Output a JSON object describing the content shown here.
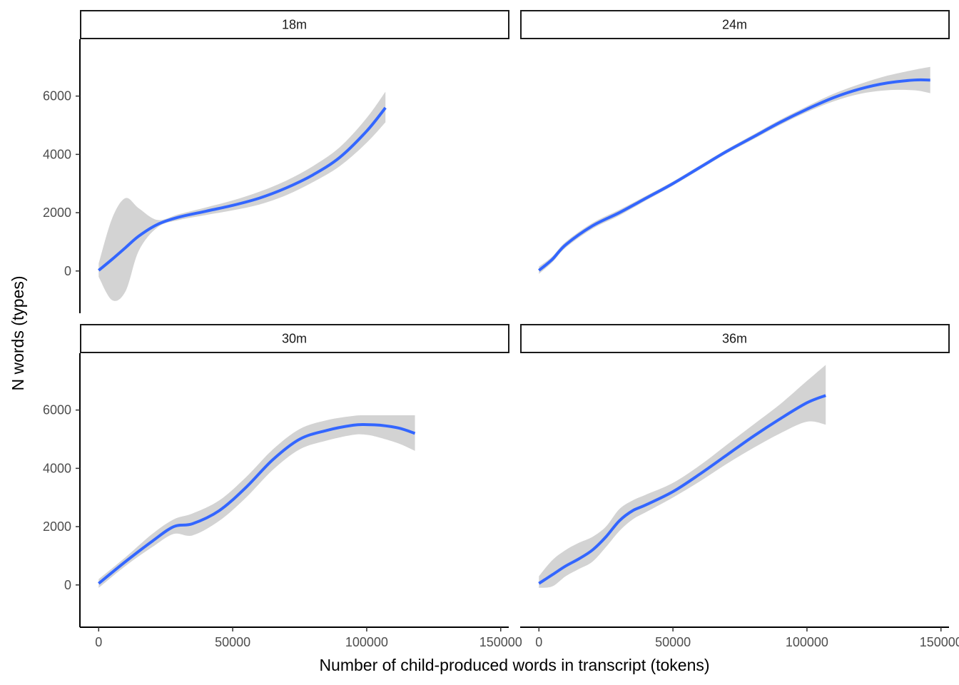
{
  "chart_data": {
    "type": "line",
    "xlabel": "Number of child-produced words in transcript (tokens)",
    "ylabel": "N words (types)",
    "xlim": [
      -7000,
      153000
    ],
    "ylim": [
      -1450,
      7950
    ],
    "x_ticks": [
      0,
      50000,
      100000,
      150000
    ],
    "x_tick_labels": [
      "0",
      "50000",
      "100000",
      "150000"
    ],
    "y_ticks": [
      0,
      2000,
      4000,
      6000
    ],
    "y_tick_labels": [
      "0",
      "2000",
      "4000",
      "6000"
    ],
    "grid": false,
    "legend": "none",
    "line_color": "#3366FF",
    "ribbon_color": "#d3d3d3",
    "panels": [
      {
        "label": "18m",
        "x": [
          0,
          5000,
          10000,
          15000,
          22000,
          30000,
          40000,
          50000,
          60000,
          70000,
          80000,
          90000,
          100000,
          107000
        ],
        "y": [
          20,
          400,
          800,
          1200,
          1600,
          1850,
          2050,
          2250,
          2500,
          2850,
          3300,
          3900,
          4800,
          5600
        ],
        "lower": [
          -200,
          -1000,
          -700,
          700,
          1500,
          1750,
          1920,
          2080,
          2280,
          2600,
          3050,
          3600,
          4400,
          5100
        ],
        "upper": [
          250,
          1800,
          2500,
          2150,
          1750,
          1950,
          2180,
          2420,
          2720,
          3100,
          3600,
          4250,
          5250,
          6150
        ]
      },
      {
        "label": "24m",
        "x": [
          0,
          5000,
          10000,
          20000,
          30000,
          40000,
          50000,
          60000,
          70000,
          80000,
          90000,
          100000,
          110000,
          120000,
          130000,
          140000,
          146000
        ],
        "y": [
          20,
          400,
          900,
          1550,
          2000,
          2500,
          3000,
          3550,
          4100,
          4600,
          5100,
          5550,
          5950,
          6250,
          6450,
          6550,
          6550
        ],
        "lower": [
          -100,
          300,
          800,
          1450,
          1900,
          2420,
          2930,
          3480,
          4030,
          4520,
          5010,
          5450,
          5820,
          6080,
          6200,
          6200,
          6100
        ],
        "upper": [
          150,
          500,
          1000,
          1650,
          2100,
          2580,
          3070,
          3620,
          4170,
          4680,
          5190,
          5650,
          6080,
          6420,
          6700,
          6900,
          7000
        ]
      },
      {
        "label": "30m",
        "x": [
          0,
          10000,
          20000,
          28000,
          35000,
          45000,
          55000,
          65000,
          75000,
          85000,
          95000,
          100000,
          105000,
          112000,
          118000
        ],
        "y": [
          50,
          800,
          1500,
          2000,
          2100,
          2550,
          3350,
          4300,
          5000,
          5300,
          5480,
          5500,
          5480,
          5380,
          5200
        ],
        "lower": [
          -100,
          650,
          1300,
          1750,
          1700,
          2200,
          3000,
          3950,
          4650,
          4950,
          5150,
          5150,
          5050,
          4850,
          4600
        ],
        "upper": [
          200,
          950,
          1750,
          2250,
          2450,
          2900,
          3700,
          4650,
          5350,
          5650,
          5800,
          5820,
          5820,
          5820,
          5820
        ]
      },
      {
        "label": "36m",
        "x": [
          0,
          5000,
          10000,
          15000,
          20000,
          25000,
          30000,
          35000,
          40000,
          50000,
          60000,
          70000,
          80000,
          90000,
          100000,
          107000
        ],
        "y": [
          50,
          350,
          650,
          900,
          1200,
          1650,
          2200,
          2550,
          2750,
          3200,
          3800,
          4450,
          5100,
          5700,
          6250,
          6500
        ],
        "lower": [
          -100,
          -50,
          300,
          550,
          800,
          1300,
          1850,
          2250,
          2500,
          3000,
          3550,
          4150,
          4700,
          5200,
          5600,
          5500
        ],
        "upper": [
          300,
          850,
          1200,
          1450,
          1650,
          2000,
          2600,
          2900,
          3100,
          3500,
          4100,
          4800,
          5500,
          6200,
          7000,
          7550
        ]
      }
    ]
  }
}
